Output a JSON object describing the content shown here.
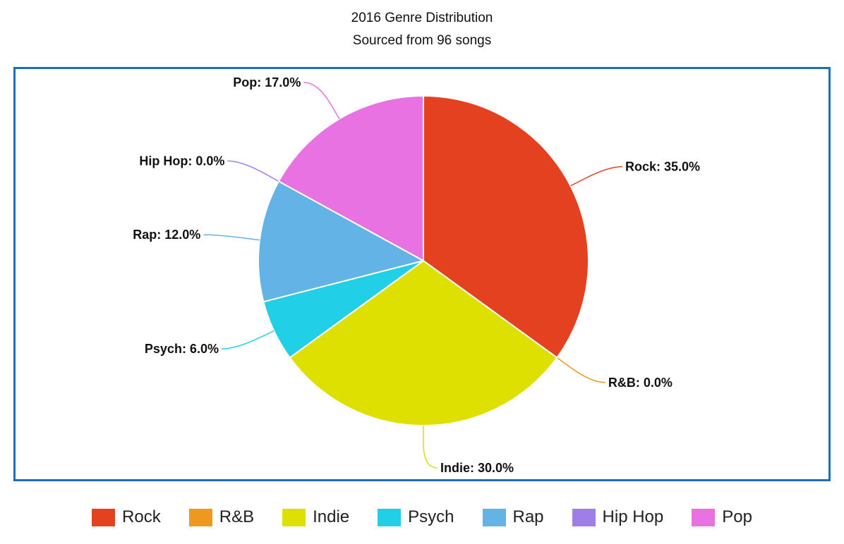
{
  "chart_data": {
    "type": "pie",
    "title": "2016 Genre Distribution",
    "subtitle": "Sourced from 96 songs",
    "slices": [
      {
        "label": "Rock",
        "value": 35.0,
        "display": "Rock: 35.0%",
        "color": "#e34120"
      },
      {
        "label": "R&B",
        "value": 0.0,
        "display": "R&B: 0.0%",
        "color": "#ee981f"
      },
      {
        "label": "Indie",
        "value": 30.0,
        "display": "Indie: 30.0%",
        "color": "#dde000"
      },
      {
        "label": "Psych",
        "value": 6.0,
        "display": "Psych: 6.0%",
        "color": "#21d0e6"
      },
      {
        "label": "Rap",
        "value": 12.0,
        "display": "Rap: 12.0%",
        "color": "#63b3e6"
      },
      {
        "label": "Hip Hop",
        "value": 0.0,
        "display": "Hip Hop: 0.0%",
        "color": "#a07ee8"
      },
      {
        "label": "Pop",
        "value": 17.0,
        "display": "Pop: 17.0%",
        "color": "#e872e2"
      }
    ],
    "legend": {
      "position": "bottom"
    }
  }
}
